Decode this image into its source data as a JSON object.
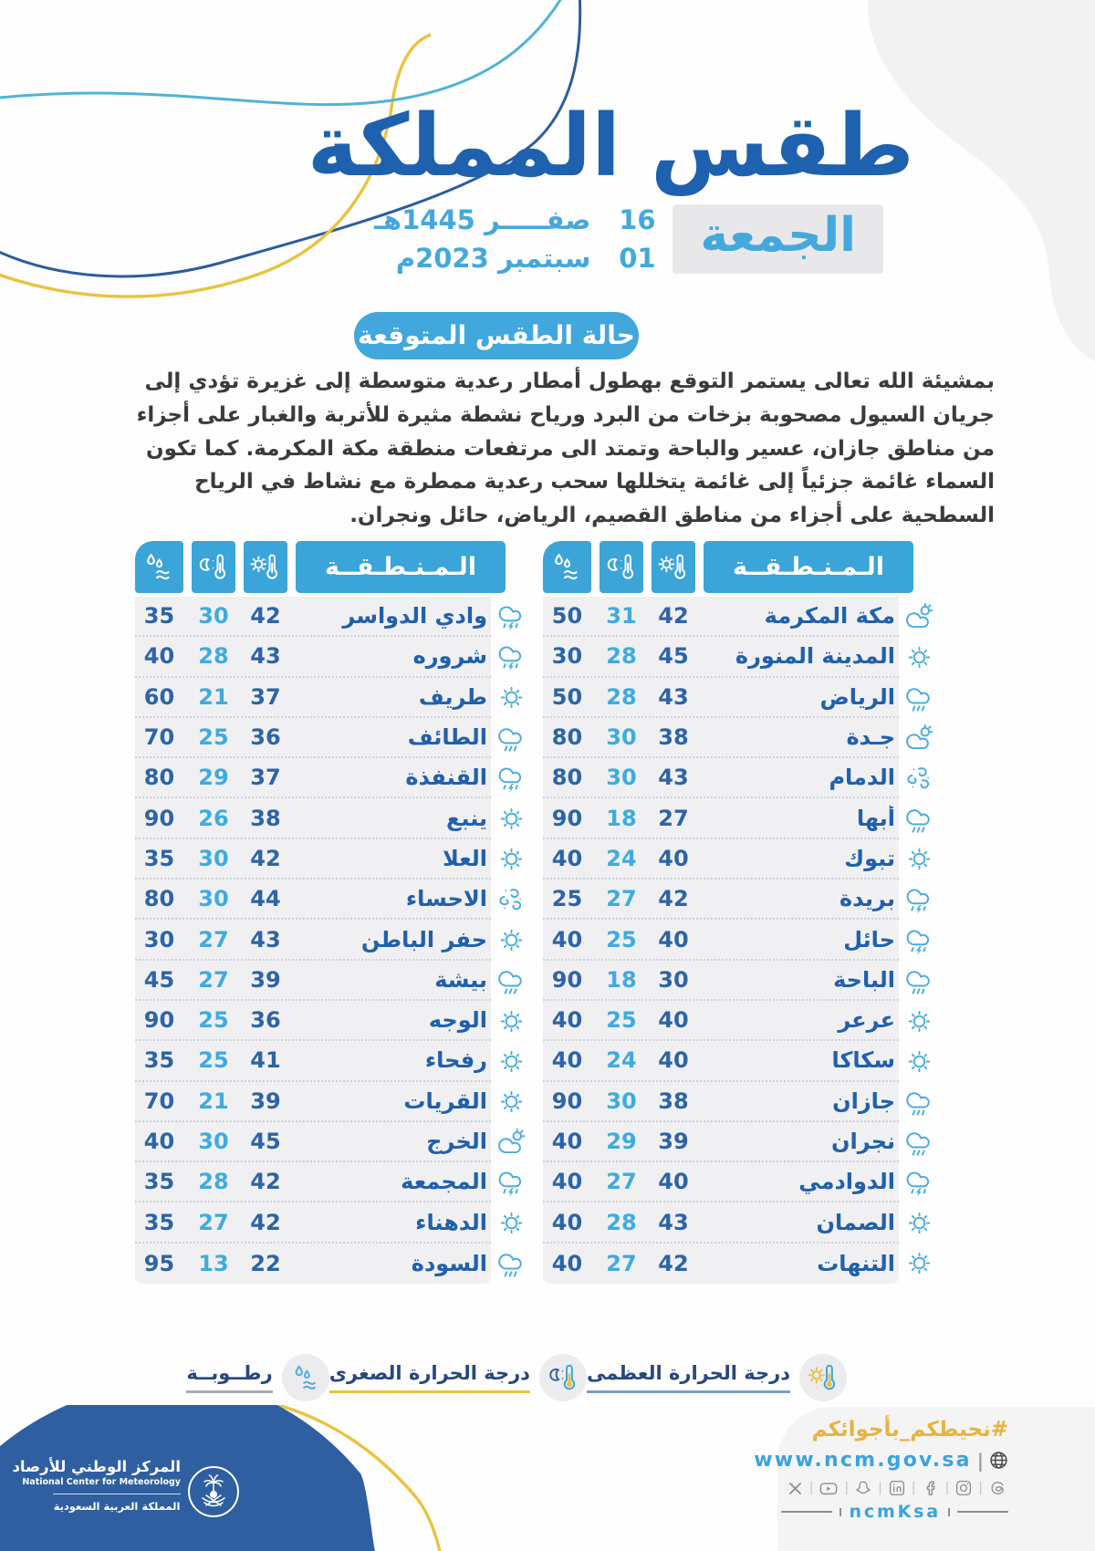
{
  "header": {
    "title": "طقس المملكة",
    "day": "الجمعة",
    "hijri_day": "16",
    "hijri_date": "صفـــــر 1445هـ",
    "greg_day": "01",
    "greg_date": "سبتمبر 2023م"
  },
  "forecast": {
    "badge": "حالة الطقس المتوقعة",
    "text": "بمشيئة الله تعالى يستمر التوقع بهطول أمطار رعدية متوسطة إلى غزيرة  تؤدي إلى جريان السيول مصحوبة بزخات من البرد ورياح نشطة مثيرة للأتربة والغبار على أجزاء من مناطق جازان، عسير والباحة وتمتد الى مرتفعات منطقة مكة المكرمة. كما تكون السماء غائمة جزئياً إلى غائمة يتخللها سحب رعدية ممطرة مع نشاط في الرياح السطحية على أجزاء من مناطق القصيم، الرياض، حائل ونجران."
  },
  "table": {
    "region_header": "الـمـنـطـقــة",
    "columns": [
      {
        "name": "max-temp",
        "icon": "max-temp-icon"
      },
      {
        "name": "min-temp",
        "icon": "min-temp-icon"
      },
      {
        "name": "humidity",
        "icon": "humidity-icon"
      }
    ]
  },
  "right_table": {
    "rows": [
      {
        "region": "مكة المكرمة",
        "max": 42,
        "min": 31,
        "humidity": 50,
        "condition": "partly-cloudy"
      },
      {
        "region": "المدينة المنورة",
        "max": 45,
        "min": 28,
        "humidity": 30,
        "condition": "sunny"
      },
      {
        "region": "الرياض",
        "max": 43,
        "min": 28,
        "humidity": 50,
        "condition": "rain"
      },
      {
        "region": "جـدة",
        "max": 38,
        "min": 30,
        "humidity": 80,
        "condition": "partly-cloudy"
      },
      {
        "region": "الدمام",
        "max": 43,
        "min": 30,
        "humidity": 80,
        "condition": "dust"
      },
      {
        "region": "أبها",
        "max": 27,
        "min": 18,
        "humidity": 90,
        "condition": "rain"
      },
      {
        "region": "تبوك",
        "max": 40,
        "min": 24,
        "humidity": 40,
        "condition": "sunny"
      },
      {
        "region": "بريدة",
        "max": 42,
        "min": 27,
        "humidity": 25,
        "condition": "thunderstorm"
      },
      {
        "region": "حائل",
        "max": 40,
        "min": 25,
        "humidity": 40,
        "condition": "thunderstorm"
      },
      {
        "region": "الباحة",
        "max": 30,
        "min": 18,
        "humidity": 90,
        "condition": "rain"
      },
      {
        "region": "عرعر",
        "max": 40,
        "min": 25,
        "humidity": 40,
        "condition": "sunny"
      },
      {
        "region": "سكاكا",
        "max": 40,
        "min": 24,
        "humidity": 40,
        "condition": "sunny"
      },
      {
        "region": "جازان",
        "max": 38,
        "min": 30,
        "humidity": 90,
        "condition": "rain"
      },
      {
        "region": "نجران",
        "max": 39,
        "min": 29,
        "humidity": 40,
        "condition": "rain"
      },
      {
        "region": "الدوادمي",
        "max": 40,
        "min": 27,
        "humidity": 40,
        "condition": "thunderstorm"
      },
      {
        "region": "الصمان",
        "max": 43,
        "min": 28,
        "humidity": 40,
        "condition": "sunny"
      },
      {
        "region": "التنهات",
        "max": 42,
        "min": 27,
        "humidity": 40,
        "condition": "sunny"
      }
    ]
  },
  "left_table": {
    "rows": [
      {
        "region": "وادي الدواسر",
        "max": 42,
        "min": 30,
        "humidity": 35,
        "condition": "thunderstorm"
      },
      {
        "region": "شروره",
        "max": 43,
        "min": 28,
        "humidity": 40,
        "condition": "thunderstorm"
      },
      {
        "region": "طريف",
        "max": 37,
        "min": 21,
        "humidity": 60,
        "condition": "sunny"
      },
      {
        "region": "الطائف",
        "max": 36,
        "min": 25,
        "humidity": 70,
        "condition": "rain"
      },
      {
        "region": "القنفذة",
        "max": 37,
        "min": 29,
        "humidity": 80,
        "condition": "thunderstorm"
      },
      {
        "region": "ينبع",
        "max": 38,
        "min": 26,
        "humidity": 90,
        "condition": "sunny"
      },
      {
        "region": "العلا",
        "max": 42,
        "min": 30,
        "humidity": 35,
        "condition": "sunny"
      },
      {
        "region": "الاحساء",
        "max": 44,
        "min": 30,
        "humidity": 80,
        "condition": "dust"
      },
      {
        "region": "حفر الباطن",
        "max": 43,
        "min": 27,
        "humidity": 30,
        "condition": "sunny"
      },
      {
        "region": "بيشة",
        "max": 39,
        "min": 27,
        "humidity": 45,
        "condition": "rain"
      },
      {
        "region": "الوجه",
        "max": 36,
        "min": 25,
        "humidity": 90,
        "condition": "sunny"
      },
      {
        "region": "رفحاء",
        "max": 41,
        "min": 25,
        "humidity": 35,
        "condition": "sunny"
      },
      {
        "region": "القريات",
        "max": 39,
        "min": 21,
        "humidity": 70,
        "condition": "sunny"
      },
      {
        "region": "الخرج",
        "max": 45,
        "min": 30,
        "humidity": 40,
        "condition": "partly-cloudy"
      },
      {
        "region": "المجمعة",
        "max": 42,
        "min": 28,
        "humidity": 35,
        "condition": "thunderstorm"
      },
      {
        "region": "الدهناء",
        "max": 42,
        "min": 27,
        "humidity": 35,
        "condition": "sunny"
      },
      {
        "region": "السودة",
        "max": 22,
        "min": 13,
        "humidity": 95,
        "condition": "rain"
      }
    ]
  },
  "legend": {
    "items": [
      {
        "label": "درجة الحرارة العظمى",
        "icon": "max-temp-icon"
      },
      {
        "label": "درجة الحرارة الصغرى",
        "icon": "min-temp-icon"
      },
      {
        "label": "رطــوبــة",
        "icon": "humidity-icon"
      }
    ]
  },
  "footer": {
    "org_name_ar": "المركز الوطني للأرصاد",
    "org_name_en": "National Center for Meteorology",
    "org_country": "المملكة العربية السعودية",
    "hashtag": "#نحيطكم_بأجوائكم",
    "website": "www.ncm.gov.sa",
    "social_handle": "ncmKsa",
    "social_icons": [
      "x",
      "youtube",
      "snapchat",
      "linkedin",
      "facebook",
      "instagram",
      "threads"
    ]
  },
  "colors": {
    "title_blue": "#1e61ae",
    "accent_cyan": "#41a7dd",
    "table_header_blue": "#3ba4d9",
    "max_temp_navy": "#2d64a7",
    "min_temp_cyan": "#3fabdf",
    "yellow": "#e9bc3e",
    "row_gray": "#f0f0f2",
    "footer_dome_blue": "#2f5fa0"
  }
}
